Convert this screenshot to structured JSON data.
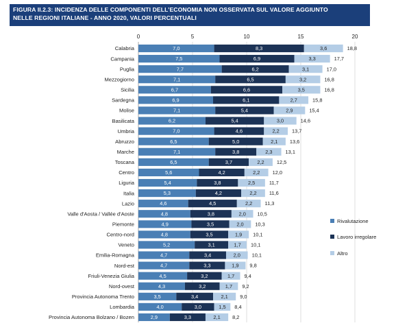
{
  "title": {
    "line1": "FIGURA II.2.3: INCIDENZA DELLE COMPONENTI DELL’ECONOMIA NON OSSERVATA SUL VALORE AGGIUNTO",
    "line2": "NELLE REGIONI ITALIANE - ANNO 2020, VALORI PERCENTUALI"
  },
  "chart_data": {
    "type": "bar",
    "orientation": "horizontal",
    "stacked": true,
    "xlim": [
      0,
      20
    ],
    "xticks": [
      0,
      5,
      10,
      15,
      20
    ],
    "grid": true,
    "legend_position": "right",
    "categories": [
      "Calabria",
      "Campania",
      "Puglia",
      "Mezzogiorno",
      "Sicilia",
      "Sardegna",
      "Molise",
      "Basilicata",
      "Umbria",
      "Abruzzo",
      "Marche",
      "Toscana",
      "Centro",
      "Liguria",
      "Italia",
      "Lazio",
      "Valle d'Aosta / Vallée d'Aoste",
      "Piemonte",
      "Centro-nord",
      "Veneto",
      "Emilia-Romagna",
      "Nord-est",
      "Friuli-Venezia Giulia",
      "Nord-ovest",
      "Provincia Autonoma Trento",
      "Lombardia",
      "Provincia Autonoma Bolzano / Bozen"
    ],
    "series": [
      {
        "name": "Rivalutazione",
        "color": "#4a7fb5",
        "values": [
          7.0,
          7.5,
          7.7,
          7.1,
          6.7,
          6.9,
          7.1,
          6.2,
          7.0,
          6.5,
          7.1,
          6.5,
          5.6,
          5.4,
          5.3,
          4.6,
          4.8,
          4.9,
          4.8,
          5.2,
          4.7,
          4.7,
          4.5,
          4.3,
          3.5,
          4.0,
          2.9
        ],
        "labels": [
          "7,0",
          "7,5",
          "7,7",
          "7,1",
          "6,7",
          "6,9",
          "7,1",
          "6,2",
          "7,0",
          "6,5",
          "7,1",
          "6,5",
          "5,6",
          "5,4",
          "5,3",
          "4,6",
          "4,8",
          "4,9",
          "4,8",
          "5,2",
          "4,7",
          "4,7",
          "4,5",
          "4,3",
          "3,5",
          "4,0",
          "2,9"
        ]
      },
      {
        "name": "Lavoro irregolare",
        "color": "#1c3356",
        "values": [
          8.3,
          6.9,
          6.2,
          6.5,
          6.6,
          6.1,
          5.4,
          5.4,
          4.6,
          5.0,
          3.8,
          3.7,
          4.2,
          3.8,
          4.2,
          4.5,
          3.8,
          3.5,
          3.5,
          3.1,
          3.4,
          3.3,
          3.2,
          3.2,
          3.4,
          3.0,
          3.3
        ],
        "labels": [
          "8,3",
          "6,9",
          "6,2",
          "6,5",
          "6,6",
          "6,1",
          "5,4",
          "5,4",
          "4,6",
          "5,0",
          "3,8",
          "3,7",
          "4,2",
          "3,8",
          "4,2",
          "4,5",
          "3,8",
          "3,5",
          "3,5",
          "3,1",
          "3,4",
          "3,3",
          "3,2",
          "3,2",
          "3,4",
          "3,0",
          "3,3"
        ]
      },
      {
        "name": "Altro",
        "color": "#b4cde6",
        "values": [
          3.6,
          3.3,
          3.1,
          3.2,
          3.5,
          2.7,
          2.9,
          3.0,
          2.2,
          2.1,
          2.3,
          2.2,
          2.2,
          2.5,
          2.2,
          2.2,
          2.0,
          2.0,
          1.9,
          1.7,
          2.0,
          1.9,
          1.7,
          1.7,
          2.1,
          1.5,
          2.1
        ],
        "labels": [
          "3,6",
          "3,3",
          "3,1",
          "3,2",
          "3,5",
          "2,7",
          "2,9",
          "3,0",
          "2,2",
          "2,1",
          "2,3",
          "2,2",
          "2,2",
          "2,5",
          "2,2",
          "2,2",
          "2,0",
          "2,0",
          "1,9",
          "1,7",
          "2,0",
          "1,9",
          "1,7",
          "1,7",
          "2,1",
          "1,5",
          "2,1"
        ]
      }
    ],
    "totals": [
      18.8,
      17.7,
      17.0,
      16.8,
      16.8,
      15.8,
      15.4,
      14.6,
      13.7,
      13.6,
      13.1,
      12.5,
      12.0,
      11.7,
      11.6,
      11.3,
      10.5,
      10.3,
      10.1,
      10.1,
      10.1,
      9.8,
      9.4,
      9.2,
      9.0,
      8.4,
      8.2
    ],
    "total_labels": [
      "18,8",
      "17,7",
      "17,0",
      "16,8",
      "16,8",
      "15,8",
      "15,4",
      "14,6",
      "13,7",
      "13,6",
      "13,1",
      "12,5",
      "12,0",
      "11,7",
      "11,6",
      "11,3",
      "10,5",
      "10,3",
      "10,1",
      "10,1",
      "10,1",
      "9,8",
      "9,4",
      "9,2",
      "9,0",
      "8,4",
      "8,2"
    ]
  }
}
